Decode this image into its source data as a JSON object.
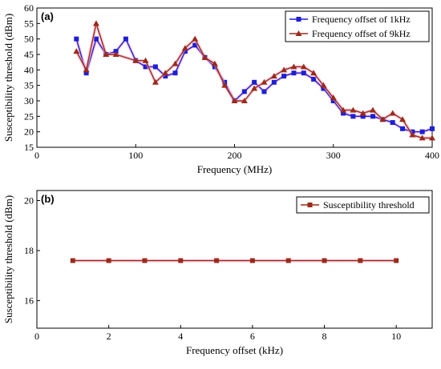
{
  "chart_data": [
    {
      "type": "line",
      "panel_label": "(a)",
      "title": "",
      "xlabel": "Frequency (MHz)",
      "ylabel": "Susceptibility threshold (dBm)",
      "xlim": [
        0,
        400
      ],
      "ylim": [
        15,
        60
      ],
      "xticks": [
        0,
        100,
        200,
        300,
        400
      ],
      "yticks": [
        15,
        20,
        25,
        30,
        35,
        40,
        45,
        50,
        55,
        60
      ],
      "grid": false,
      "legend_position": "top-right",
      "series": [
        {
          "name": "Frequency offset of 1kHz",
          "color": "#1f1fd6",
          "marker": "square",
          "x": [
            40,
            50,
            60,
            70,
            80,
            90,
            100,
            110,
            120,
            130,
            140,
            150,
            160,
            170,
            180,
            190,
            200,
            210,
            220,
            230,
            240,
            250,
            260,
            270,
            280,
            290,
            300,
            310,
            320,
            330,
            340,
            350,
            360,
            370,
            380,
            390,
            400
          ],
          "values": [
            50,
            39,
            50,
            45,
            46,
            50,
            43,
            41,
            41,
            38,
            39,
            46,
            48,
            44,
            41,
            36,
            30,
            33,
            36,
            33,
            36,
            38,
            39,
            39,
            37,
            34,
            30,
            26,
            25,
            25,
            25,
            24,
            23,
            21,
            20,
            20,
            21
          ]
        },
        {
          "name": "Frequency offset of 9kHz",
          "color": "#9c2a1a",
          "marker": "triangle",
          "x": [
            40,
            50,
            60,
            70,
            80,
            100,
            110,
            120,
            130,
            140,
            150,
            160,
            170,
            180,
            190,
            200,
            210,
            220,
            230,
            240,
            250,
            260,
            270,
            280,
            290,
            300,
            310,
            320,
            330,
            340,
            350,
            360,
            370,
            380,
            390,
            400
          ],
          "values": [
            46,
            40,
            55,
            45,
            45,
            43,
            43,
            36,
            39,
            42,
            47,
            50,
            44,
            42,
            35,
            30,
            30,
            34,
            36,
            38,
            40,
            41,
            41,
            39,
            35,
            31,
            27,
            27,
            26,
            27,
            24,
            26,
            24,
            19,
            18,
            18
          ]
        }
      ]
    },
    {
      "type": "line",
      "panel_label": "(b)",
      "title": "",
      "xlabel": "Frequency offset (kHz)",
      "ylabel": "Susceptibility threshold (dBm)",
      "xlim": [
        0,
        11
      ],
      "ylim": [
        14.9,
        20.4
      ],
      "xticks": [
        0,
        2,
        4,
        6,
        8,
        10
      ],
      "yticks": [
        16,
        18,
        20
      ],
      "grid": false,
      "legend_position": "top-right",
      "series": [
        {
          "name": "Susceptibility threshold",
          "color": "#9c2a1a",
          "marker": "square",
          "x": [
            1,
            2,
            3,
            4,
            5,
            6,
            7,
            8,
            9,
            10
          ],
          "values": [
            17.6,
            17.6,
            17.6,
            17.6,
            17.6,
            17.6,
            17.6,
            17.6,
            17.6,
            17.6
          ]
        }
      ]
    }
  ]
}
